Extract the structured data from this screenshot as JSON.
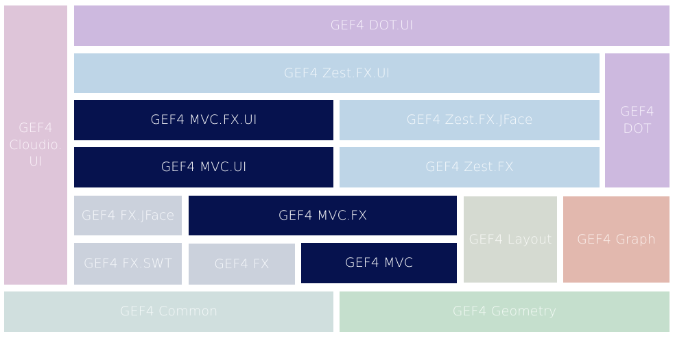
{
  "components": {
    "cloudio_ui": "GEF4\nCloudio.\nUI",
    "dot_ui": "GEF4 DOT.UI",
    "zest_fx_ui": "GEF4 Zest.FX.UI",
    "dot": "GEF4\nDOT",
    "mvc_fx_ui": "GEF4 MVC.FX.UI",
    "zest_fx_jface": "GEF4 Zest.FX.JFace",
    "mvc_ui": "GEF4 MVC.UI",
    "zest_fx": "GEF4 Zest.FX",
    "fx_jface": "GEF4 FX.JFace",
    "mvc_fx": "GEF4 MVC.FX",
    "layout": "GEF4 Layout",
    "graph": "GEF4 Graph",
    "fx_swt": "GEF4 FX.SWT",
    "fx": "GEF4 FX",
    "mvc": "GEF4 MVC",
    "common": "GEF4 Common",
    "geometry": "GEF4 Geometry"
  },
  "colors": {
    "core_mvc": "#06124e",
    "cloudio": "#dec5d9",
    "dot": "#cdb9df",
    "zest": "#bed5e7",
    "fx": "#cbd1dc",
    "layout": "#d5dad1",
    "graph": "#e2b8ae",
    "common": "#d0dfde",
    "geometry": "#c5dfcd"
  }
}
